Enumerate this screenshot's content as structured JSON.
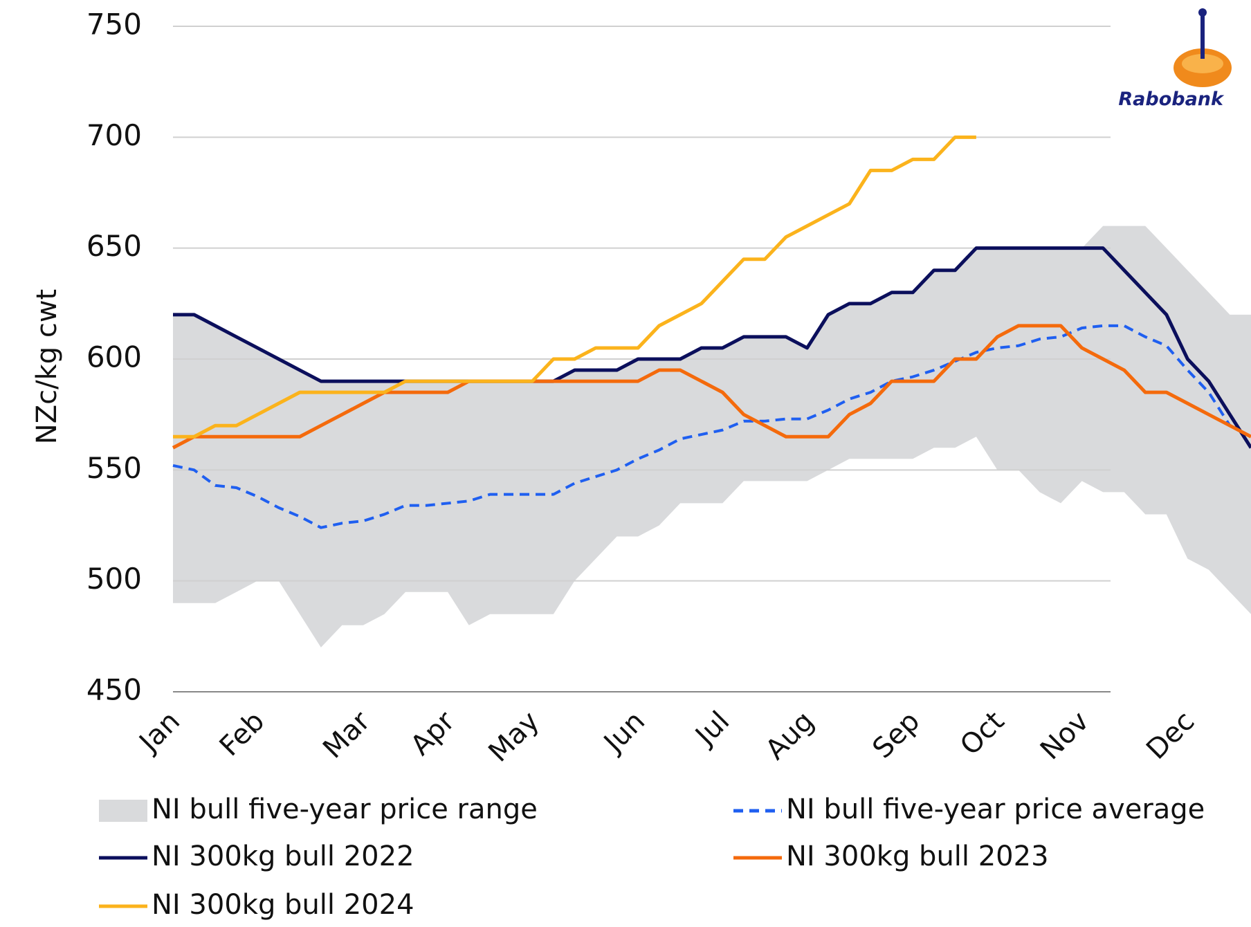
{
  "chart_data": {
    "type": "line",
    "y_label": "NZc/kg cwt",
    "logo": "Rabobank",
    "categories": [
      "Jan",
      null,
      null,
      null,
      "Feb",
      null,
      null,
      null,
      null,
      "Mar",
      null,
      null,
      null,
      "Apr",
      null,
      null,
      null,
      "May",
      null,
      null,
      null,
      null,
      "Jun",
      null,
      null,
      null,
      "Jul",
      null,
      null,
      null,
      "Aug",
      null,
      null,
      null,
      null,
      "Sep",
      null,
      null,
      null,
      "Oct",
      null,
      null,
      null,
      "Nov",
      null,
      null,
      null,
      null,
      "Dec",
      null,
      null,
      null
    ],
    "ylim": [
      450,
      750
    ],
    "yticks": [
      450,
      500,
      550,
      600,
      650,
      700,
      750
    ],
    "grid": true,
    "range": {
      "name": "NI bull five-year price range",
      "color": "#d9dadc",
      "low": [
        490,
        490,
        490,
        495,
        500,
        500,
        485,
        470,
        480,
        480,
        485,
        495,
        495,
        495,
        480,
        485,
        485,
        485,
        485,
        500,
        510,
        520,
        520,
        525,
        535,
        535,
        535,
        545,
        545,
        545,
        545,
        550,
        555,
        555,
        555,
        555,
        560,
        560,
        565,
        550,
        550,
        540,
        535,
        545,
        540,
        540,
        530,
        530,
        510,
        505,
        495,
        485
      ],
      "high": [
        620,
        620,
        615,
        610,
        605,
        600,
        595,
        590,
        590,
        590,
        590,
        590,
        590,
        590,
        590,
        590,
        590,
        590,
        590,
        595,
        595,
        595,
        600,
        600,
        600,
        605,
        605,
        610,
        610,
        610,
        605,
        620,
        625,
        625,
        630,
        630,
        640,
        640,
        650,
        650,
        650,
        650,
        650,
        650,
        660,
        660,
        660,
        650,
        640,
        630,
        620,
        620
      ]
    },
    "series": [
      {
        "name": "NI bull five-year price average",
        "color": "#1f5ff0",
        "dashed": true,
        "values": [
          552,
          550,
          543,
          542,
          538,
          533,
          529,
          524,
          526,
          527,
          530,
          534,
          534,
          535,
          536,
          539,
          539,
          539,
          539,
          544,
          547,
          550,
          555,
          559,
          564,
          566,
          568,
          572,
          572,
          573,
          573,
          577,
          582,
          585,
          590,
          592,
          595,
          599,
          603,
          605,
          606,
          609,
          610,
          614,
          615,
          615,
          610,
          606,
          595,
          585,
          570,
          565
        ]
      },
      {
        "name": "NI 300kg bull 2022",
        "color": "#0b0f5c",
        "values": [
          620,
          620,
          615,
          610,
          605,
          600,
          595,
          590,
          590,
          590,
          590,
          590,
          590,
          590,
          590,
          590,
          590,
          590,
          590,
          595,
          595,
          595,
          600,
          600,
          600,
          605,
          605,
          610,
          610,
          610,
          605,
          620,
          625,
          625,
          630,
          630,
          640,
          640,
          650,
          650,
          650,
          650,
          650,
          650,
          650,
          640,
          630,
          620,
          600,
          590,
          575,
          560
        ]
      },
      {
        "name": "NI 300kg bull 2023",
        "color": "#f46a0c",
        "values": [
          560,
          565,
          565,
          565,
          565,
          565,
          565,
          570,
          575,
          580,
          585,
          585,
          585,
          585,
          590,
          590,
          590,
          590,
          590,
          590,
          590,
          590,
          590,
          595,
          595,
          590,
          585,
          575,
          570,
          565,
          565,
          565,
          575,
          580,
          590,
          590,
          590,
          600,
          600,
          610,
          615,
          615,
          615,
          605,
          600,
          595,
          585,
          585,
          580,
          575,
          570,
          565
        ]
      },
      {
        "name": "NI 300kg bull 2024",
        "color": "#fbb31c",
        "values": [
          565,
          565,
          570,
          570,
          575,
          580,
          585,
          585,
          585,
          585,
          585,
          590,
          590,
          590,
          590,
          590,
          590,
          590,
          600,
          600,
          605,
          605,
          605,
          615,
          620,
          625,
          635,
          645,
          645,
          655,
          660,
          665,
          670,
          685,
          685,
          690,
          690,
          700,
          700,
          null,
          null,
          null,
          null,
          null,
          null,
          null,
          null,
          null,
          null,
          null,
          null,
          null
        ]
      }
    ]
  }
}
